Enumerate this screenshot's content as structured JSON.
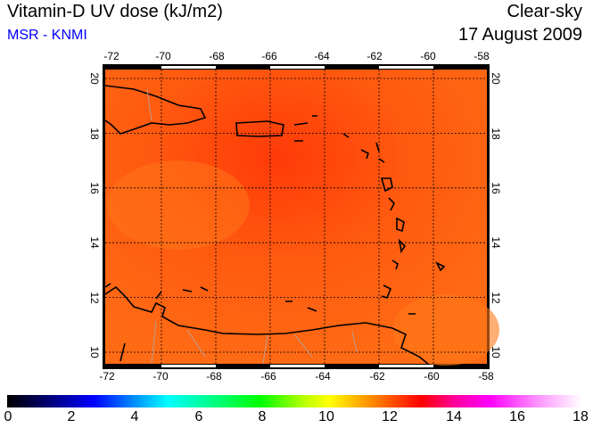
{
  "header": {
    "title": "Vitamin-D UV dose (kJ/m2)",
    "source": "MSR - KNMI",
    "condition": "Clear-sky",
    "date": "17 August 2009"
  },
  "map": {
    "lon_labels": [
      "-72",
      "-70",
      "-68",
      "-66",
      "-64",
      "-62",
      "-60",
      "-58"
    ],
    "lat_labels": [
      "20",
      "18",
      "16",
      "14",
      "12",
      "10"
    ],
    "lon_range": [
      -72,
      -58
    ],
    "lat_range": [
      9.5,
      20.3
    ]
  },
  "colorbar": {
    "labels": [
      "0",
      "2",
      "4",
      "6",
      "8",
      "10",
      "12",
      "14",
      "16",
      "18"
    ],
    "range": [
      0,
      18
    ]
  },
  "colors": {
    "field": "#ff5a10",
    "title": "#000000",
    "source": "#0000ff"
  }
}
